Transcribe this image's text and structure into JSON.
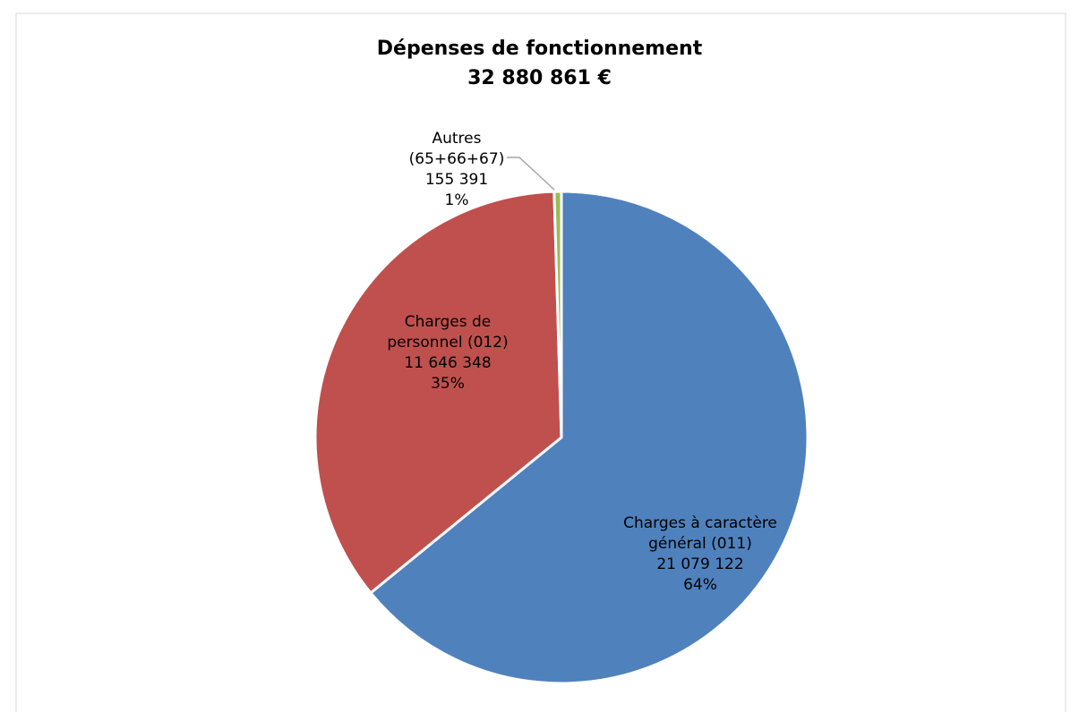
{
  "chart_data": {
    "type": "pie",
    "title": "Dépenses de fonctionnement",
    "subtitle": "32 880 861 €",
    "categories": [
      "Charges à caractère général (011)",
      "Charges de personnel (012)",
      "Autres (65+66+67)"
    ],
    "values": [
      21079122,
      11646348,
      155391
    ],
    "value_labels": [
      "21 079 122",
      "11 646 348",
      "155 391"
    ],
    "percent_labels": [
      "64%",
      "35%",
      "1%"
    ],
    "colors": [
      "#4f81bd",
      "#c0504d",
      "#9bbb59"
    ]
  }
}
